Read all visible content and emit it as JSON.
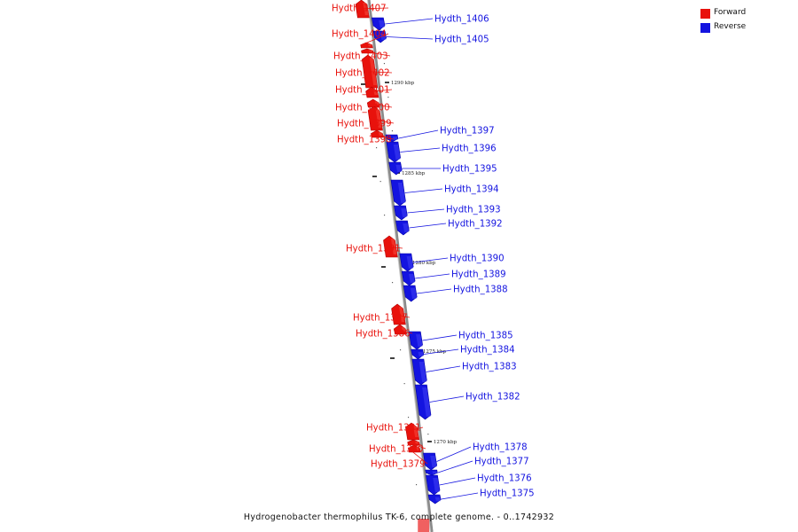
{
  "caption": "Hydrogenobacter thermophilus TK-6, complete genome. - 0..1742932",
  "legend": [
    {
      "label": "Forward",
      "color": "#e8120c"
    },
    {
      "label": "Reverse",
      "color": "#1414e0"
    }
  ],
  "scale_labels": [
    "1290 kbp",
    "1285 kbp",
    "1280 kbp",
    "1275 kbp",
    "1270 kbp"
  ],
  "genes": [
    {
      "name": "Hydth_1407",
      "strand": "forward"
    },
    {
      "name": "Hydth_1406",
      "strand": "reverse"
    },
    {
      "name": "Hydth_1405",
      "strand": "reverse"
    },
    {
      "name": "Hydth_1404",
      "strand": "forward"
    },
    {
      "name": "Hydth_1403",
      "strand": "forward"
    },
    {
      "name": "Hydth_1402",
      "strand": "forward"
    },
    {
      "name": "Hydth_1401",
      "strand": "forward"
    },
    {
      "name": "Hydth_1400",
      "strand": "forward"
    },
    {
      "name": "Hydth_1399",
      "strand": "forward"
    },
    {
      "name": "Hydth_1398",
      "strand": "forward"
    },
    {
      "name": "Hydth_1397",
      "strand": "reverse"
    },
    {
      "name": "Hydth_1396",
      "strand": "reverse"
    },
    {
      "name": "Hydth_1395",
      "strand": "reverse"
    },
    {
      "name": "Hydth_1394",
      "strand": "reverse"
    },
    {
      "name": "Hydth_1393",
      "strand": "reverse"
    },
    {
      "name": "Hydth_1392",
      "strand": "reverse"
    },
    {
      "name": "Hydth_1391",
      "strand": "forward"
    },
    {
      "name": "Hydth_1390",
      "strand": "reverse"
    },
    {
      "name": "Hydth_1389",
      "strand": "reverse"
    },
    {
      "name": "Hydth_1388",
      "strand": "reverse"
    },
    {
      "name": "Hydth_1387",
      "strand": "forward"
    },
    {
      "name": "Hydth_1386",
      "strand": "forward"
    },
    {
      "name": "Hydth_1385",
      "strand": "reverse"
    },
    {
      "name": "Hydth_1384",
      "strand": "reverse"
    },
    {
      "name": "Hydth_1383",
      "strand": "reverse"
    },
    {
      "name": "Hydth_1382",
      "strand": "reverse"
    },
    {
      "name": "Hydth_1381",
      "strand": "forward"
    },
    {
      "name": "Hydth_1380",
      "strand": "forward"
    },
    {
      "name": "Hydth_1379",
      "strand": "forward"
    },
    {
      "name": "Hydth_1378",
      "strand": "reverse"
    },
    {
      "name": "Hydth_1377",
      "strand": "reverse"
    },
    {
      "name": "Hydth_1376",
      "strand": "reverse"
    },
    {
      "name": "Hydth_1375",
      "strand": "reverse"
    }
  ]
}
